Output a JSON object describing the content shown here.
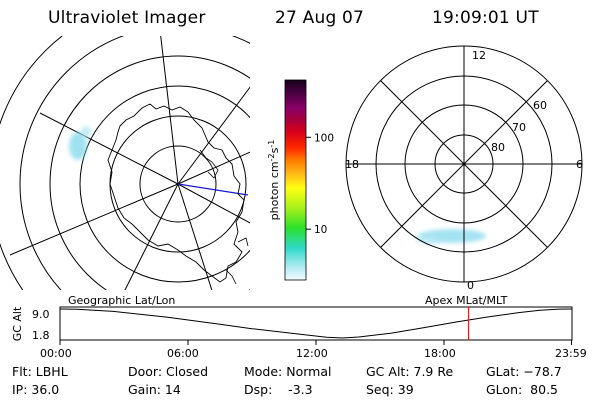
{
  "header": {
    "title": "Ultraviolet Imager",
    "date": "27 Aug 07",
    "time": "19:09:01 UT"
  },
  "colorbar": {
    "label_main": "photon cm",
    "label_sup1": "-2",
    "label_mid": "s",
    "label_sup2": "-1",
    "ticks": [
      {
        "value": 100,
        "label": "100"
      },
      {
        "value": 10,
        "label": "10"
      }
    ],
    "range": [
      2.8,
      420
    ]
  },
  "right_plot": {
    "mlt_labels": {
      "top": "12",
      "left": "18",
      "right": "6",
      "bottom": "0"
    },
    "lat_labels": [
      {
        "value": 60,
        "label": "60"
      },
      {
        "value": 70,
        "label": "70"
      },
      {
        "value": 80,
        "label": "80"
      }
    ],
    "caption": "Apex MLat/MLT"
  },
  "left_plot": {
    "caption": "Geographic Lat/Lon"
  },
  "timeline": {
    "axis_label": "GC Alt",
    "y_ticks": [
      {
        "value": 9.0,
        "label": "9.0"
      },
      {
        "value": 1.8,
        "label": "1.8"
      }
    ],
    "x_ticks": [
      "00:00",
      "06:00",
      "12:00",
      "18:00",
      "23:59"
    ],
    "x_hours": [
      0,
      6,
      12,
      18,
      23.98
    ],
    "orbit_series": [
      [
        0.0,
        9.0
      ],
      [
        0.8,
        8.95
      ],
      [
        2.5,
        8.4
      ],
      [
        5.0,
        7.0
      ],
      [
        7.5,
        5.2
      ],
      [
        9.0,
        4.1
      ],
      [
        11.0,
        2.9
      ],
      [
        12.5,
        2.0
      ],
      [
        13.25,
        1.8
      ],
      [
        14.0,
        2.05
      ],
      [
        15.5,
        3.0
      ],
      [
        17.0,
        4.3
      ],
      [
        18.5,
        5.7
      ],
      [
        20.0,
        7.0
      ],
      [
        21.5,
        8.1
      ],
      [
        22.5,
        8.7
      ],
      [
        23.4,
        8.97
      ],
      [
        23.98,
        9.0
      ]
    ],
    "current_hour": 19.15,
    "marker_color": "#e02020"
  },
  "info": {
    "flt": "Flt: LBHL",
    "ip": "IP: 36.0",
    "door": "Door: Closed",
    "gain": "Gain: 14",
    "mode": "Mode: Normal",
    "dsp": "Dsp:    -3.3",
    "gcalt": "GC Alt: 7.9 Re",
    "seq": "Seq: 39",
    "glat": "GLat: −78.7",
    "glon": "GLon:  80.5"
  }
}
